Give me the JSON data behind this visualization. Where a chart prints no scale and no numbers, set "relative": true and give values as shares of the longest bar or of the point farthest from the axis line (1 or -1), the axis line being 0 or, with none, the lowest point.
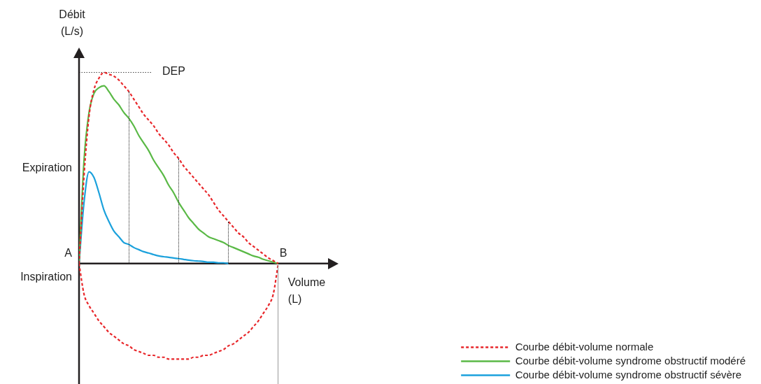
{
  "chart_data": {
    "type": "line",
    "relative": true,
    "xlabel": "Volume\n(L)",
    "ylabel": "Débit\n(L/s)",
    "legend": "bottom right",
    "marker": "none",
    "categories": [
      null,
      null,
      null,
      null,
      null,
      null,
      null,
      null,
      null,
      null,
      null,
      null,
      null,
      null,
      null,
      null,
      null,
      null,
      null,
      null,
      null,
      null,
      null,
      null,
      null,
      null,
      null,
      null,
      null,
      null,
      null,
      null,
      null,
      null,
      null,
      null,
      null,
      null,
      null,
      null,
      null
    ],
    "series": [
      {
        "name": "Courbe débit-volume normale",
        "color": "#e8262a",
        "line_style": "dashed",
        "values": [
          0,
          0.46,
          0.77,
          0.91,
          0.97,
          1,
          0.99,
          0.98,
          0.96,
          0.93,
          0.9,
          0.86,
          0.82,
          0.78,
          0.75,
          0.72,
          0.68,
          0.65,
          0.62,
          0.58,
          0.55,
          0.51,
          0.48,
          0.45,
          0.42,
          0.39,
          0.36,
          0.32,
          0.28,
          0.25,
          0.22,
          0.19,
          0.16,
          0.14,
          0.11,
          0.09,
          0.07,
          0.05,
          0.03,
          0.015,
          0
        ]
      },
      {
        "name": "Courbe débit-volume syndrome obstructif modéré",
        "color": "#5ab946",
        "line_style": "solid",
        "values": [
          0,
          0.54,
          0.79,
          0.89,
          0.92,
          0.93,
          0.9,
          0.86,
          0.83,
          0.79,
          0.76,
          0.72,
          0.67,
          0.63,
          0.59,
          0.54,
          0.5,
          0.46,
          0.41,
          0.37,
          0.32,
          0.28,
          0.24,
          0.21,
          0.18,
          0.16,
          0.14,
          0.13,
          0.12,
          0.11,
          0.095,
          0.084,
          0.073,
          0.062,
          0.051,
          0.04,
          0.033,
          0.022,
          0.015,
          0.007,
          0
        ]
      },
      {
        "name": "Courbe débit-volume syndrome obstructif sévère",
        "color": "#1ba1dc",
        "line_style": "solid",
        "values": [
          0,
          0.32,
          0.48,
          0.45,
          0.37,
          0.28,
          0.22,
          0.17,
          0.14,
          0.11,
          0.1,
          0.084,
          0.073,
          0.062,
          0.055,
          0.047,
          0.04,
          0.036,
          0.033,
          0.029,
          0.026,
          0.022,
          0.018,
          0.015,
          0.013,
          0.011,
          0.007,
          0.007,
          0.004,
          0.004,
          0,
          null,
          null,
          null,
          null,
          null,
          null,
          null,
          null,
          null,
          null
        ]
      },
      {
        "color": "#e8262a",
        "line_style": "dashed",
        "values": [
          0,
          -0.16,
          -0.22,
          -0.26,
          -0.3,
          -0.33,
          -0.36,
          -0.38,
          -0.4,
          -0.42,
          -0.43,
          -0.45,
          -0.46,
          -0.47,
          -0.48,
          -0.48,
          -0.49,
          -0.49,
          -0.5,
          -0.5,
          -0.5,
          -0.5,
          -0.5,
          -0.49,
          -0.49,
          -0.48,
          -0.48,
          -0.47,
          -0.46,
          -0.45,
          -0.43,
          -0.42,
          -0.4,
          -0.38,
          -0.36,
          -0.33,
          -0.3,
          -0.26,
          -0.22,
          -0.16,
          0
        ]
      }
    ],
    "ref_lines": [
      {
        "axis": "y",
        "value": 1,
        "label": "DEP",
        "line_style": "dotted",
        "color": "#444444"
      }
    ],
    "annotations": [
      "A",
      "B",
      "Expiration",
      "Inspiration"
    ]
  }
}
